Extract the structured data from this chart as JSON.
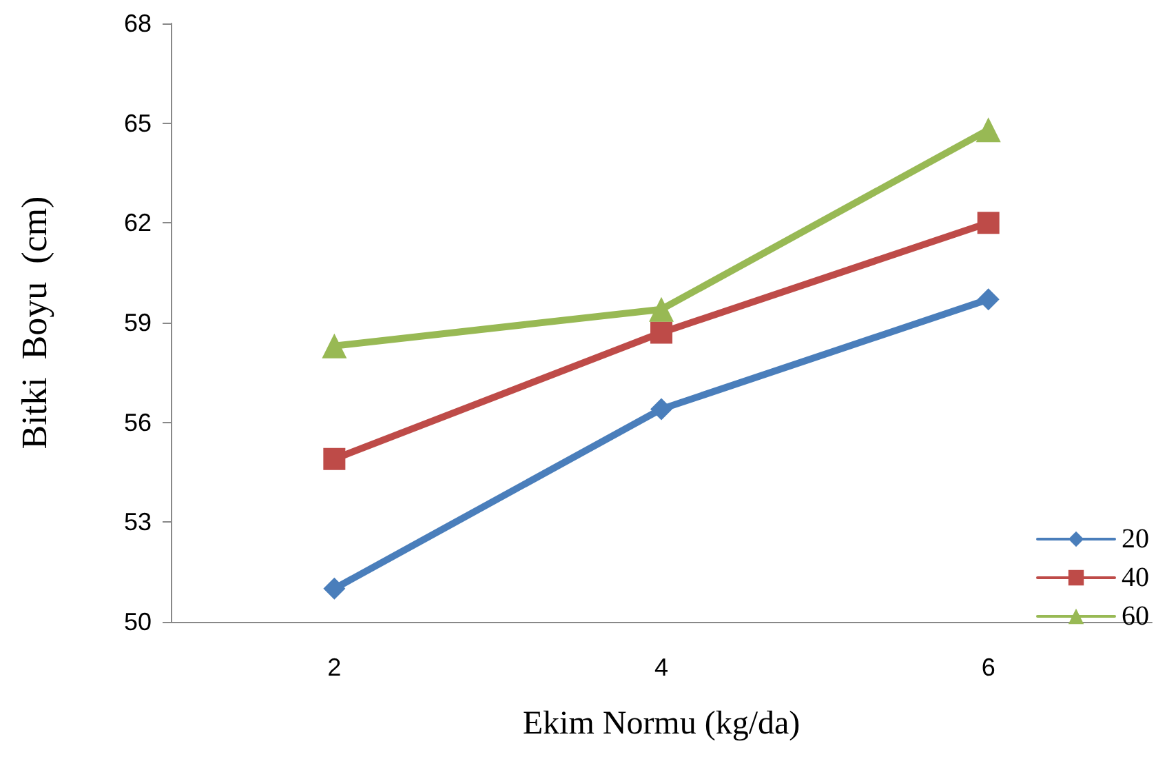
{
  "chart_data": {
    "type": "line",
    "xlabel": "Ekim Normu (kg/da)",
    "ylabel": "Bitki  Boyu  (cm)",
    "categories": [
      "2",
      "4",
      "6"
    ],
    "series": [
      {
        "name": "20",
        "color": "#4a7ebb",
        "marker": "diamond",
        "values": [
          51.0,
          56.4,
          59.7
        ]
      },
      {
        "name": "40",
        "color": "#be4b48",
        "marker": "square",
        "values": [
          54.9,
          58.7,
          62.0
        ]
      },
      {
        "name": "60",
        "color": "#98b954",
        "marker": "triangle",
        "values": [
          58.3,
          59.4,
          64.8
        ]
      }
    ],
    "ylim": [
      50,
      68
    ],
    "yticks": [
      50,
      53,
      56,
      59,
      62,
      65,
      68
    ],
    "grid": false,
    "legend": "bottom right",
    "line_style": "solid"
  }
}
